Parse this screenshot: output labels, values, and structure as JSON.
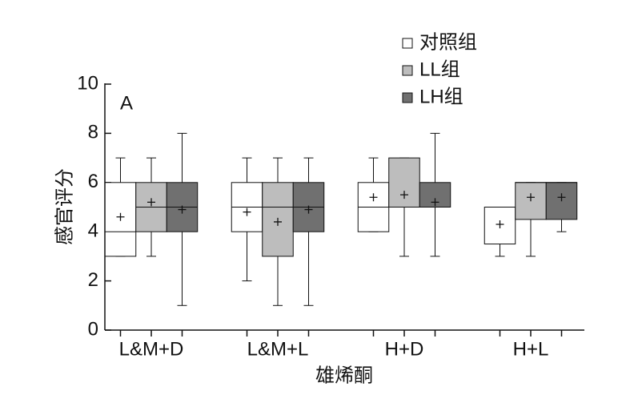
{
  "chart_data": {
    "type": "box",
    "annotation": "A",
    "y_label": "感官评分",
    "x_label": "雄烯酮",
    "categories": [
      "L&M+D",
      "L&M+L",
      "H+D",
      "H+L"
    ],
    "ylim": [
      0,
      10
    ],
    "yticks": [
      0,
      2,
      4,
      6,
      8,
      10
    ],
    "series": [
      {
        "name": "对照组",
        "color": "#ffffff",
        "values": [
          {
            "min": 3,
            "q1": 3,
            "median": 4,
            "q3": 6,
            "max": 7,
            "mean": 4.6
          },
          {
            "min": 2,
            "q1": 4,
            "median": 5,
            "q3": 6,
            "max": 7,
            "mean": 4.8
          },
          {
            "min": 4,
            "q1": 4,
            "median": 5,
            "q3": 6,
            "max": 7,
            "mean": 5.4
          },
          {
            "min": 3,
            "q1": 3.5,
            "median": 5,
            "q3": 5,
            "max": 5,
            "mean": 4.3
          }
        ]
      },
      {
        "name": "LL组",
        "color": "#bdbdbd",
        "values": [
          {
            "min": 3,
            "q1": 4,
            "median": 5,
            "q3": 6,
            "max": 7,
            "mean": 5.2
          },
          {
            "min": 1,
            "q1": 3,
            "median": 5,
            "q3": 6,
            "max": 7,
            "mean": 4.4
          },
          {
            "min": 3,
            "q1": 5,
            "median": 5,
            "q3": 7,
            "max": 7,
            "mean": 5.5
          },
          {
            "min": 3,
            "q1": 4.5,
            "median": 6,
            "q3": 6,
            "max": 6,
            "mean": 5.4
          }
        ]
      },
      {
        "name": "LH组",
        "color": "#707070",
        "values": [
          {
            "min": 1,
            "q1": 4,
            "median": 5,
            "q3": 6,
            "max": 8,
            "mean": 4.9
          },
          {
            "min": 1,
            "q1": 4,
            "median": 5,
            "q3": 6,
            "max": 7,
            "mean": 4.9
          },
          {
            "min": 3,
            "q1": 5,
            "median": 5,
            "q3": 6,
            "max": 8,
            "mean": 5.2
          },
          {
            "min": 4,
            "q1": 4.5,
            "median": 6,
            "q3": 6,
            "max": 6,
            "mean": 5.4
          }
        ]
      }
    ]
  }
}
